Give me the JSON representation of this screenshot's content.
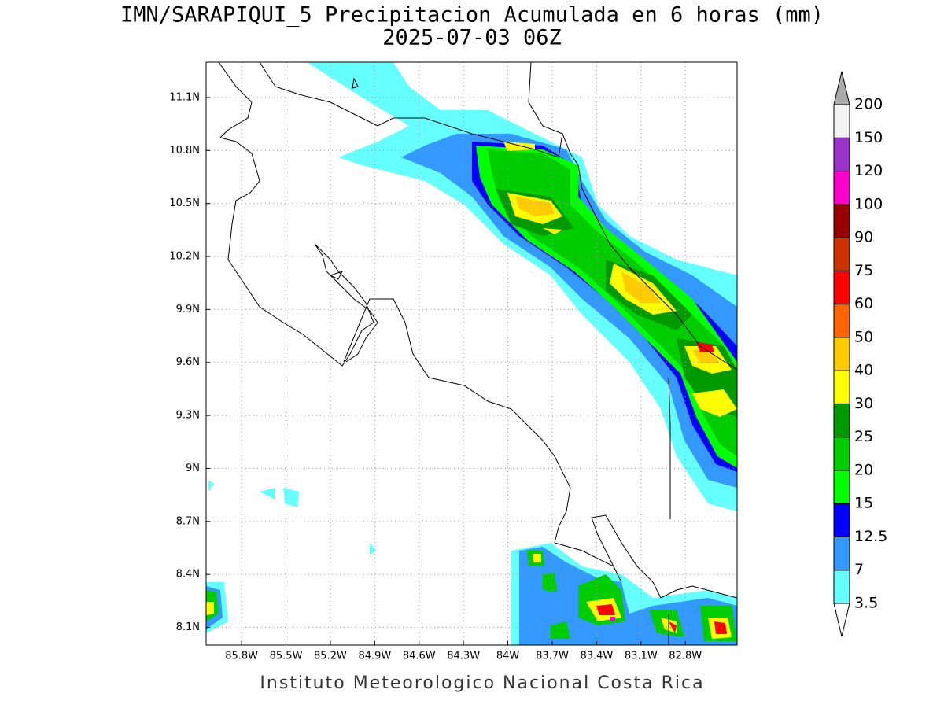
{
  "map": {
    "title": "IMN/SARAPIQUI_5 Precipitacion Acumulada en 6 horas (mm)",
    "subtitle": "2025-07-03 06Z",
    "footer": "Instituto Meteorologico Nacional Costa Rica",
    "lonlim": [
      -86.04,
      -82.45
    ],
    "latlim": [
      8.0,
      11.3
    ],
    "lonticks": [
      {
        "value": -85.8,
        "label": "85.8W"
      },
      {
        "value": -85.5,
        "label": "85.5W"
      },
      {
        "value": -85.2,
        "label": "85.2W"
      },
      {
        "value": -84.9,
        "label": "84.9W"
      },
      {
        "value": -84.6,
        "label": "84.6W"
      },
      {
        "value": -84.3,
        "label": "84.3W"
      },
      {
        "value": -84.0,
        "label": "84W"
      },
      {
        "value": -83.7,
        "label": "83.7W"
      },
      {
        "value": -83.4,
        "label": "83.4W"
      },
      {
        "value": -83.1,
        "label": "83.1W"
      },
      {
        "value": -82.8,
        "label": "82.8W"
      }
    ],
    "latticks": [
      {
        "value": 8.1,
        "label": "8.1N"
      },
      {
        "value": 8.4,
        "label": "8.4N"
      },
      {
        "value": 8.7,
        "label": "8.7N"
      },
      {
        "value": 9.0,
        "label": "9N"
      },
      {
        "value": 9.3,
        "label": "9.3N"
      },
      {
        "value": 9.6,
        "label": "9.6N"
      },
      {
        "value": 9.9,
        "label": "9.9N"
      },
      {
        "value": 10.2,
        "label": "10.2N"
      },
      {
        "value": 10.5,
        "label": "10.5N"
      },
      {
        "value": 10.8,
        "label": "10.8N"
      },
      {
        "value": 11.1,
        "label": "11.1N"
      }
    ],
    "grid": true,
    "legend": {
      "levels": [
        3.5,
        7,
        12.5,
        15,
        20,
        25,
        30,
        40,
        50,
        60,
        75,
        90,
        100,
        120,
        150,
        200
      ],
      "colors": [
        "#66ffff",
        "#3399ff",
        "#0000ff",
        "#00ff00",
        "#00cc00",
        "#009900",
        "#ffff00",
        "#ffcc00",
        "#ff6600",
        "#ff0000",
        "#cc3300",
        "#990000",
        "#ff00cc",
        "#9933cc",
        "#f4f4f4"
      ],
      "under_color": "#ffffff",
      "over_color": "#aaaaaa"
    }
  }
}
